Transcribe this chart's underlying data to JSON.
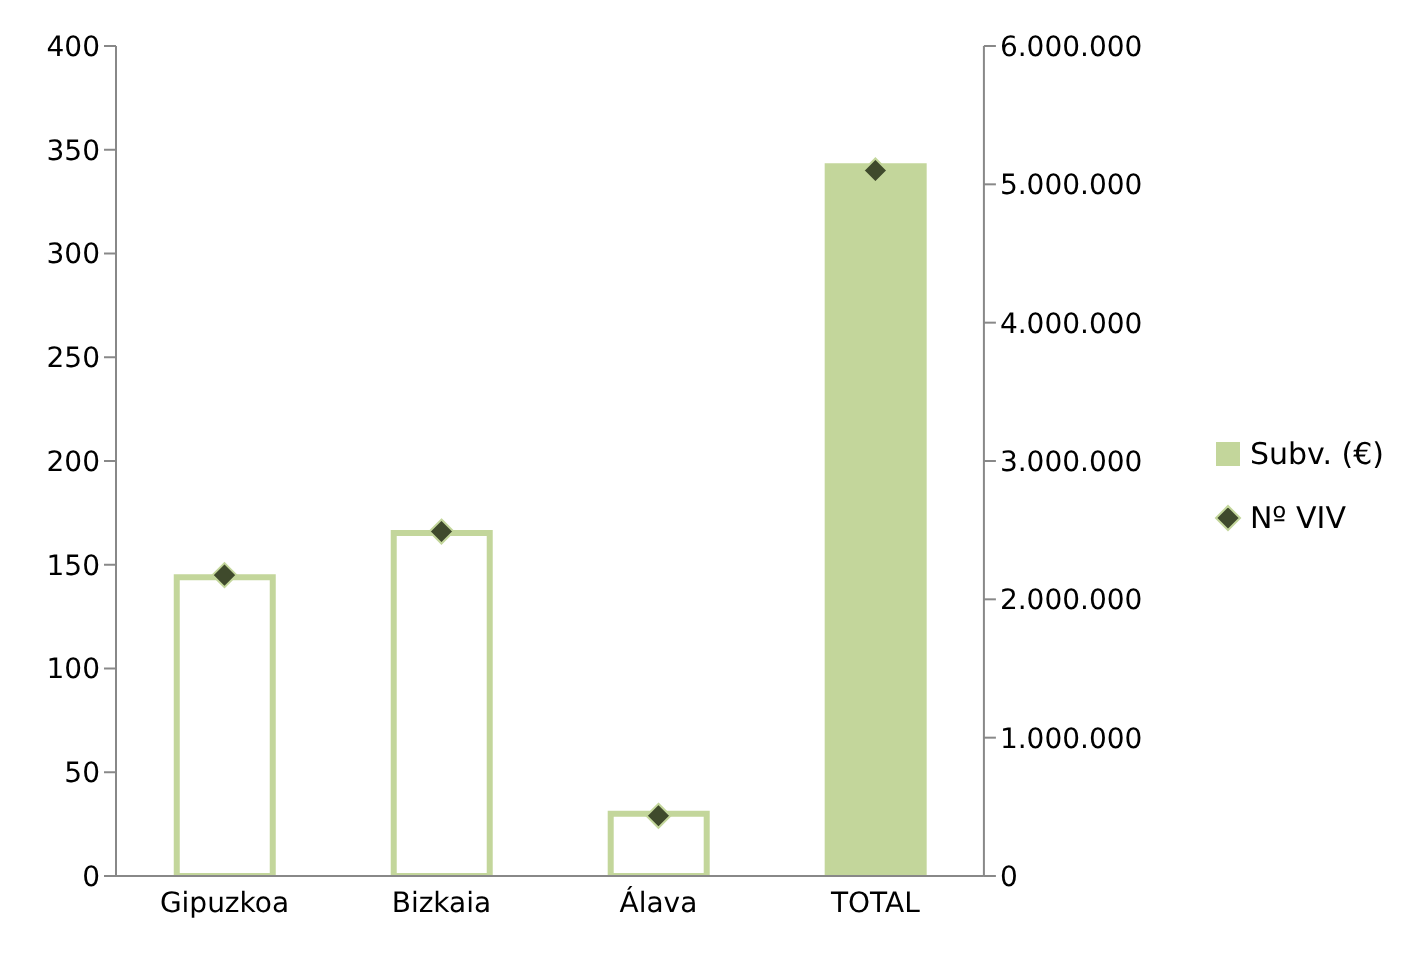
{
  "chart_data": {
    "type": "bar",
    "categories": [
      "Gipuzkoa",
      "Bizkaia",
      "Álava",
      "TOTAL"
    ],
    "series": [
      {
        "name": "Subv. (€)",
        "axis": "y2",
        "color": "#c3d69b",
        "colors": [
          "#ffffff",
          "#ffffff",
          "#ffffff",
          "#c3d69b"
        ],
        "values": [
          2160000,
          2480000,
          450000,
          5130000
        ]
      },
      {
        "name": "Nº VIV",
        "type": "scatter",
        "marker": "diamond",
        "color": "#3f4a2c",
        "values": [
          145,
          166,
          29,
          340
        ]
      }
    ],
    "ylim": [
      0,
      400
    ],
    "yticks": [
      0,
      50,
      100,
      150,
      200,
      250,
      300,
      350,
      400
    ],
    "y2lim": [
      0,
      6000000
    ],
    "y2ticks": [
      0,
      {
        "value": 1000000,
        "label": "1.000.000"
      },
      {
        "value": 2000000,
        "label": "2.000.000"
      },
      {
        "value": 3000000,
        "label": "3.000.000"
      },
      {
        "value": 4000000,
        "label": "4.000.000"
      },
      {
        "value": 5000000,
        "label": "5.000.000"
      },
      {
        "value": 6000000,
        "label": "6.000.000"
      }
    ],
    "legend": "right"
  }
}
